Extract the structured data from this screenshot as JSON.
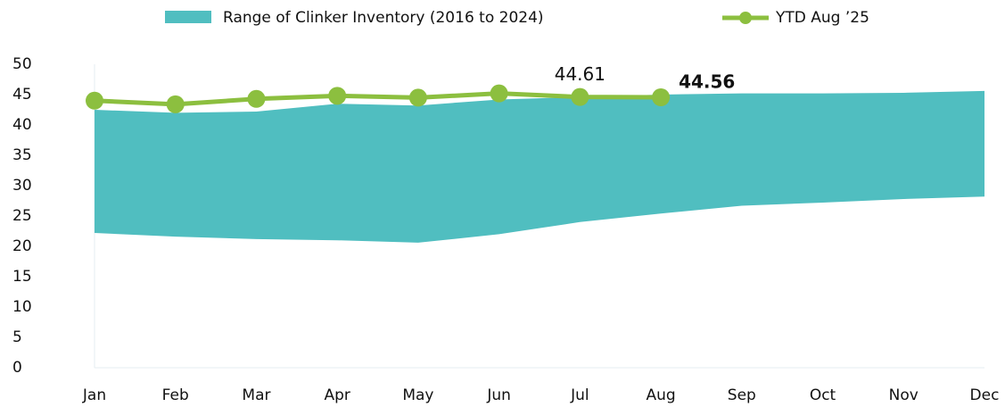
{
  "chart_data": {
    "type": "range_line",
    "categories": [
      "Jan",
      "Feb",
      "Mar",
      "Apr",
      "May",
      "Jun",
      "Jul",
      "Aug",
      "Sep",
      "Oct",
      "Nov",
      "Dec"
    ],
    "series": [
      {
        "name": "Range of Clinker Inventory (2016 to 2024)",
        "color": "#50bec0",
        "low": [
          22.2,
          21.6,
          21.2,
          21.0,
          20.6,
          22.0,
          24.0,
          25.4,
          26.7,
          27.2,
          27.8,
          28.2
        ],
        "high": [
          42.5,
          42.0,
          42.2,
          43.5,
          43.2,
          44.2,
          44.6,
          45.0,
          45.2,
          45.2,
          45.3,
          45.6
        ]
      },
      {
        "name": "YTD Aug ’25",
        "color": "#8cbf3f",
        "values": [
          44.0,
          43.4,
          44.3,
          44.8,
          44.5,
          45.2,
          44.61,
          44.56,
          null,
          null,
          null,
          null
        ],
        "value_labels": [
          null,
          null,
          null,
          null,
          null,
          null,
          "44.61",
          "44.56",
          null,
          null,
          null,
          null
        ]
      }
    ],
    "ylim": [
      0,
      50
    ],
    "yticks": [
      0,
      5,
      10,
      15,
      20,
      25,
      30,
      35,
      40,
      45,
      50
    ],
    "legend": "top"
  }
}
